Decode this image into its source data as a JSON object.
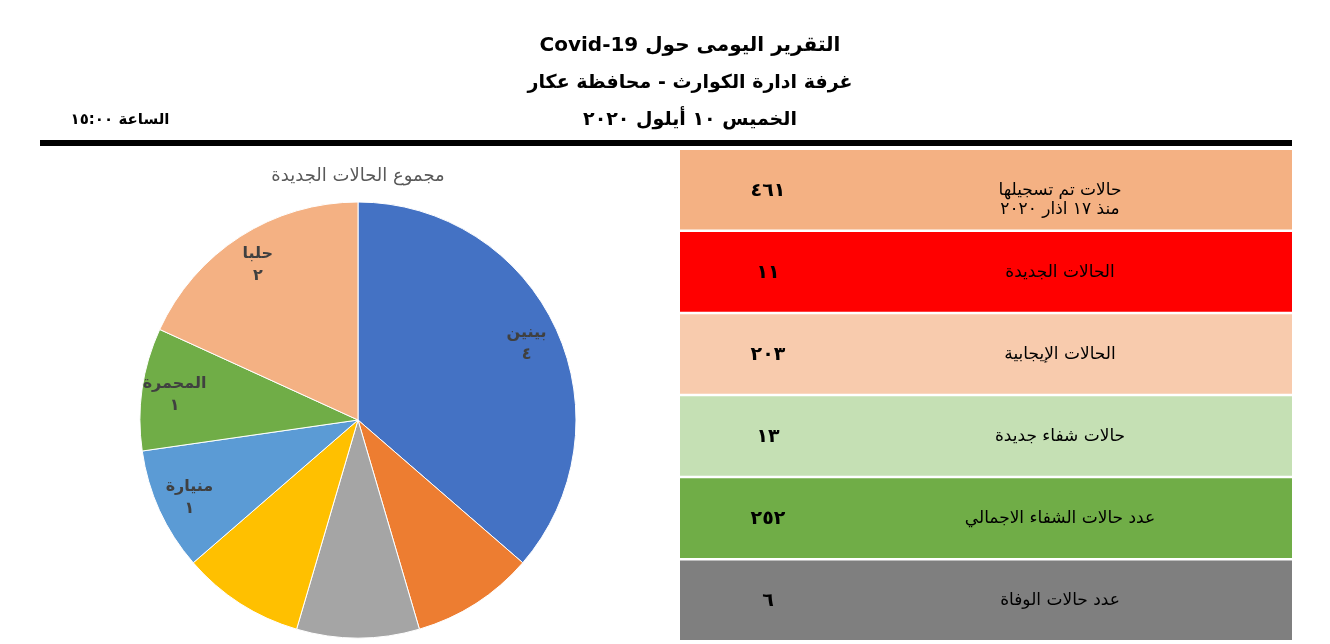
{
  "chart_data": [
    {
      "type": "other",
      "title": "التقرير اليومى حول Covid-19",
      "subtitle": "غرفة ادارة الكوارث - محافظة عكار",
      "annotations": [
        "الخميس ١٠ أيلول ٢٠٢٠",
        "الساعة ١٥:٠٠"
      ]
    },
    {
      "type": "pie",
      "title": "مجموع الحالات الجديدة",
      "categories": [
        "بينين",
        null,
        null,
        null,
        "منيارة",
        "المحمرة",
        "حلبا"
      ],
      "values": [
        4,
        1,
        1,
        1,
        1,
        1,
        2
      ],
      "value_labels": [
        "٤",
        null,
        null,
        null,
        "١",
        "١",
        "٢"
      ],
      "colors": [
        "#4472c4",
        "#ed7d31",
        "#a5a5a5",
        "#ffc000",
        "#5b9bd5",
        "#70ad47",
        "#f4b183"
      ]
    },
    {
      "type": "other",
      "categories": [
        "حالات تم تسجيلها\nمنذ ١٧ اذار ٢٠٢٠",
        "الحالات الجديدة",
        "الحالات الإيجابية",
        "حالات شفاء جديدة",
        "عدد حالات الشفاء الاجمالي",
        "عدد حالات الوفاة"
      ],
      "values": [
        461,
        11,
        203,
        13,
        252,
        6
      ],
      "value_labels": [
        "٤٦١",
        "١١",
        "٢٠٣",
        "١٣",
        "٢٥٢",
        "٦"
      ],
      "colors": [
        "#f4b183",
        "#ff0000",
        "#f8cbad",
        "#c5e0b4",
        "#70ad47",
        "#7f7f7f"
      ]
    }
  ]
}
